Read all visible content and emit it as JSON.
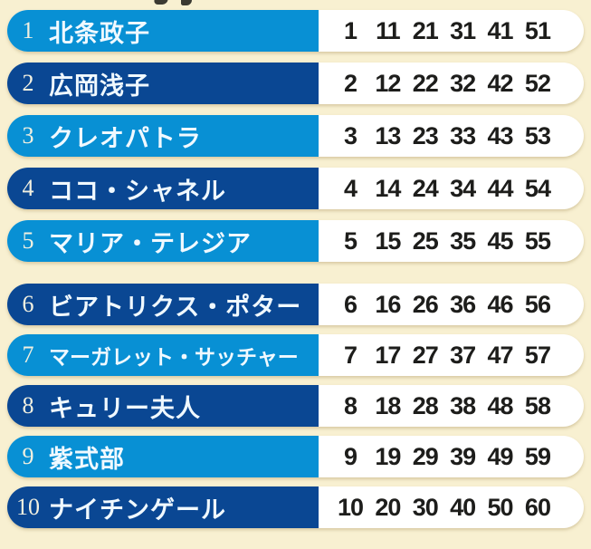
{
  "colors": {
    "background": "#F8F0D1",
    "row_light_blue": "#0890D4",
    "row_dark_blue": "#0A4793",
    "pill_white": "#FFFFFF",
    "name_text": "#F0F9FF",
    "rank_text": "#F2F0E0",
    "number_text": "#1D1D1B"
  },
  "table": {
    "rows": [
      {
        "rank": "1",
        "name": "北条政子",
        "variant": "light",
        "numbers": [
          "1",
          "11",
          "21",
          "31",
          "41",
          "51"
        ]
      },
      {
        "rank": "2",
        "name": "広岡浅子",
        "variant": "dark",
        "numbers": [
          "2",
          "12",
          "22",
          "32",
          "42",
          "52"
        ]
      },
      {
        "rank": "3",
        "name": "クレオパトラ",
        "variant": "light",
        "numbers": [
          "3",
          "13",
          "23",
          "33",
          "43",
          "53"
        ]
      },
      {
        "rank": "4",
        "name": "ココ・シャネル",
        "variant": "dark",
        "numbers": [
          "4",
          "14",
          "24",
          "34",
          "44",
          "54"
        ]
      },
      {
        "rank": "5",
        "name": "マリア・テレジア",
        "variant": "light",
        "numbers": [
          "5",
          "15",
          "25",
          "35",
          "45",
          "55"
        ]
      },
      {
        "rank": "6",
        "name": "ビアトリクス・ポター",
        "variant": "dark",
        "numbers": [
          "6",
          "16",
          "26",
          "36",
          "46",
          "56"
        ]
      },
      {
        "rank": "7",
        "name": "マーガレット・サッチャー",
        "variant": "light",
        "numbers": [
          "7",
          "17",
          "27",
          "37",
          "47",
          "57"
        ]
      },
      {
        "rank": "8",
        "name": "キュリー夫人",
        "variant": "dark",
        "numbers": [
          "8",
          "18",
          "28",
          "38",
          "48",
          "58"
        ]
      },
      {
        "rank": "9",
        "name": "紫式部",
        "variant": "light",
        "numbers": [
          "9",
          "19",
          "29",
          "39",
          "49",
          "59"
        ]
      },
      {
        "rank": "10",
        "name": "ナイチンゲール",
        "variant": "dark",
        "numbers": [
          "10",
          "20",
          "30",
          "40",
          "50",
          "60"
        ]
      }
    ]
  }
}
